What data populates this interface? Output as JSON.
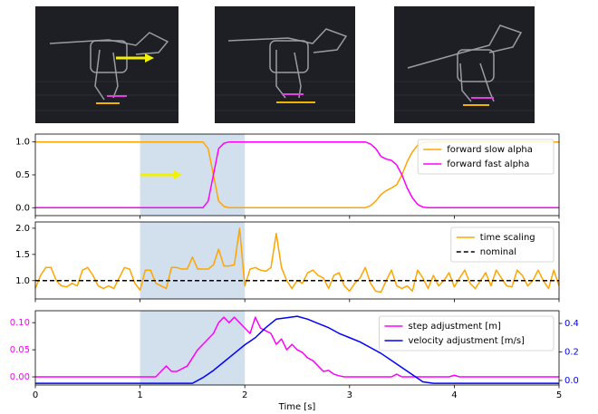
{
  "chart_data": [
    {
      "type": "line",
      "show_xtick_labels": false,
      "legend": "upper right",
      "shade": [
        1,
        2
      ],
      "arrow": {
        "x": [
          1,
          1.4
        ],
        "y": 0.5,
        "color": "#f2f200"
      },
      "xlim": [
        0,
        5
      ],
      "xticks": [
        0,
        1,
        2,
        3,
        4,
        5
      ],
      "ylim": [
        -0.12,
        1.12
      ],
      "yticks": [
        {
          "value": 0,
          "label": "0.0"
        },
        {
          "value": 0.5,
          "label": "0.5"
        },
        {
          "value": 1,
          "label": "1.0"
        }
      ],
      "x": [
        0,
        1.6,
        1.65,
        1.7,
        1.75,
        1.8,
        1.85,
        3.15,
        3.2,
        3.25,
        3.3,
        3.35,
        3.4,
        3.45,
        3.5,
        3.55,
        3.6,
        3.65,
        3.7,
        3.75,
        5
      ],
      "series": [
        {
          "name": "forward slow alpha",
          "color": "#ffa500",
          "values": [
            1,
            1,
            0.9,
            0.5,
            0.1,
            0.02,
            0,
            0,
            0.03,
            0.1,
            0.2,
            0.26,
            0.3,
            0.35,
            0.5,
            0.7,
            0.85,
            0.95,
            0.99,
            1,
            1
          ]
        },
        {
          "name": "forward fast alpha",
          "color": "#ff00ff",
          "values": [
            0,
            0,
            0.1,
            0.5,
            0.9,
            0.98,
            1,
            1,
            0.97,
            0.9,
            0.78,
            0.74,
            0.72,
            0.65,
            0.5,
            0.3,
            0.15,
            0.05,
            0.01,
            0,
            0
          ]
        }
      ]
    },
    {
      "type": "line",
      "show_xtick_labels": false,
      "legend": "upper right",
      "shade": [
        1,
        2
      ],
      "xlim": [
        0,
        5
      ],
      "xticks": [
        0,
        1,
        2,
        3,
        4,
        5
      ],
      "ylim": [
        0.65,
        2.12
      ],
      "yticks": [
        {
          "value": 1,
          "label": "1.0"
        },
        {
          "value": 1.5,
          "label": "1.5"
        },
        {
          "value": 2,
          "label": "2.0"
        }
      ],
      "x": [
        0,
        0.05,
        0.1,
        0.15,
        0.2,
        0.25,
        0.3,
        0.35,
        0.4,
        0.45,
        0.5,
        0.55,
        0.6,
        0.65,
        0.7,
        0.75,
        0.8,
        0.85,
        0.9,
        0.95,
        1,
        1.05,
        1.1,
        1.15,
        1.2,
        1.25,
        1.3,
        1.35,
        1.4,
        1.45,
        1.5,
        1.55,
        1.6,
        1.65,
        1.7,
        1.75,
        1.8,
        1.85,
        1.9,
        1.95,
        2,
        2.05,
        2.1,
        2.15,
        2.2,
        2.25,
        2.3,
        2.35,
        2.4,
        2.45,
        2.5,
        2.55,
        2.6,
        2.65,
        2.7,
        2.75,
        2.8,
        2.85,
        2.9,
        2.95,
        3,
        3.05,
        3.1,
        3.15,
        3.2,
        3.25,
        3.3,
        3.35,
        3.4,
        3.45,
        3.5,
        3.55,
        3.6,
        3.65,
        3.7,
        3.75,
        3.8,
        3.85,
        3.9,
        3.95,
        4,
        4.05,
        4.1,
        4.15,
        4.2,
        4.25,
        4.3,
        4.35,
        4.4,
        4.45,
        4.5,
        4.55,
        4.6,
        4.65,
        4.7,
        4.75,
        4.8,
        4.85,
        4.9,
        4.95,
        5
      ],
      "series": [
        {
          "name": "time scaling",
          "color": "#ffa500",
          "values": [
            0.85,
            1.1,
            1.25,
            1.25,
            1.0,
            0.9,
            0.88,
            0.95,
            0.9,
            1.2,
            1.25,
            1.1,
            0.9,
            0.85,
            0.9,
            0.85,
            1.05,
            1.25,
            1.22,
            0.95,
            0.82,
            1.2,
            1.2,
            0.95,
            0.9,
            0.85,
            1.25,
            1.25,
            1.22,
            1.22,
            1.45,
            1.22,
            1.22,
            1.22,
            1.3,
            1.6,
            1.28,
            1.28,
            1.3,
            2.0,
            0.9,
            1.22,
            1.25,
            1.2,
            1.18,
            1.25,
            1.9,
            1.25,
            1.0,
            0.85,
            1.0,
            0.95,
            1.15,
            1.2,
            1.1,
            1.05,
            0.85,
            1.1,
            1.15,
            0.9,
            0.8,
            0.95,
            1.05,
            1.25,
            0.95,
            0.8,
            0.78,
            1.0,
            1.2,
            0.9,
            0.85,
            0.9,
            0.8,
            1.2,
            1.05,
            0.85,
            1.1,
            0.9,
            1.0,
            1.15,
            0.88,
            1.05,
            1.2,
            0.95,
            0.85,
            1.0,
            1.15,
            0.9,
            1.2,
            1.05,
            0.9,
            0.88,
            1.2,
            1.1,
            0.9,
            1.0,
            1.2,
            1.0,
            0.85,
            1.2,
            0.9
          ]
        },
        {
          "name": "nominal",
          "color": "#000000",
          "dashed": true,
          "x": [
            0,
            5
          ],
          "values": [
            1,
            1
          ]
        }
      ]
    },
    {
      "type": "line",
      "show_xtick_labels": true,
      "legend": "upper right",
      "shade": [
        1,
        2
      ],
      "xlabel": "Time [s]",
      "xlim": [
        0,
        5
      ],
      "xticks": [
        0,
        1,
        2,
        3,
        4,
        5
      ],
      "ylim": [
        -0.015,
        0.122
      ],
      "yticks": [
        {
          "value": 0,
          "label": "0.00"
        },
        {
          "value": 0.05,
          "label": "0.05"
        },
        {
          "value": 0.1,
          "label": "0.10"
        }
      ],
      "ytick_color": "#ff00ff",
      "y2lim": [
        -0.032,
        0.489
      ],
      "y2ticks": [
        {
          "value": 0,
          "label": "0.0"
        },
        {
          "value": 0.2,
          "label": "0.2"
        },
        {
          "value": 0.4,
          "label": "0.4"
        }
      ],
      "y2tick_color": "#0000ff",
      "series": [
        {
          "name": "step adjustment [m]",
          "color": "#ff00ff",
          "x": [
            0,
            1.15,
            1.25,
            1.3,
            1.35,
            1.45,
            1.55,
            1.6,
            1.65,
            1.7,
            1.75,
            1.8,
            1.85,
            1.9,
            1.95,
            2,
            2.05,
            2.1,
            2.15,
            2.2,
            2.25,
            2.3,
            2.35,
            2.4,
            2.45,
            2.5,
            2.55,
            2.6,
            2.65,
            2.7,
            2.75,
            2.8,
            2.85,
            2.9,
            2.95,
            3.4,
            3.45,
            3.5,
            3.95,
            4,
            4.05,
            5
          ],
          "values": [
            0,
            0,
            0.02,
            0.01,
            0.01,
            0.02,
            0.05,
            0.06,
            0.07,
            0.08,
            0.1,
            0.11,
            0.1,
            0.11,
            0.1,
            0.09,
            0.08,
            0.11,
            0.09,
            0.085,
            0.08,
            0.06,
            0.07,
            0.05,
            0.06,
            0.05,
            0.045,
            0.035,
            0.03,
            0.02,
            0.01,
            0.012,
            0.005,
            0.002,
            0,
            0,
            0.005,
            0,
            0,
            0.003,
            0,
            0
          ]
        },
        {
          "name": "velocity adjustment [m/s]",
          "color": "#0000ff",
          "axis": "y2",
          "x": [
            0,
            1.5,
            1.6,
            1.7,
            1.8,
            1.9,
            2,
            2.1,
            2.2,
            2.3,
            2.4,
            2.5,
            2.6,
            2.7,
            2.8,
            2.9,
            3,
            3.1,
            3.2,
            3.3,
            3.4,
            3.5,
            3.6,
            3.7,
            3.8,
            5
          ],
          "values": [
            -0.02,
            -0.02,
            0.02,
            0.07,
            0.13,
            0.19,
            0.25,
            0.3,
            0.37,
            0.43,
            0.44,
            0.45,
            0.43,
            0.4,
            0.37,
            0.33,
            0.3,
            0.27,
            0.23,
            0.19,
            0.14,
            0.09,
            0.04,
            -0.01,
            -0.02,
            -0.02
          ]
        }
      ]
    }
  ]
}
